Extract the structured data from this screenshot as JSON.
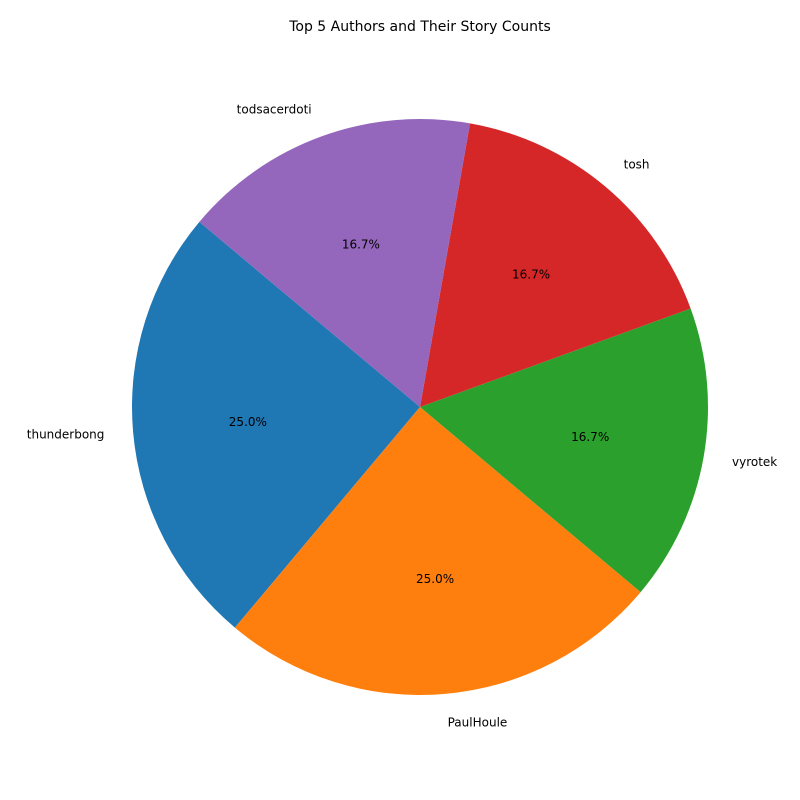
{
  "chart_data": {
    "type": "pie",
    "title": "Top 5 Authors and Their Story Counts",
    "start_angle_deg": 140,
    "direction": "counterclockwise",
    "label_format": "percent_one_decimal",
    "slices": [
      {
        "label": "thunderbong",
        "value": 3,
        "percent_label": "25.0%",
        "color": "#1f77b4"
      },
      {
        "label": "PaulHoule",
        "value": 3,
        "percent_label": "25.0%",
        "color": "#ff7f0e"
      },
      {
        "label": "vyrotek",
        "value": 2,
        "percent_label": "16.7%",
        "color": "#2ca02c"
      },
      {
        "label": "tosh",
        "value": 2,
        "percent_label": "16.7%",
        "color": "#d62728"
      },
      {
        "label": "todsacerdoti",
        "value": 2,
        "percent_label": "16.7%",
        "color": "#9467bd"
      }
    ]
  }
}
